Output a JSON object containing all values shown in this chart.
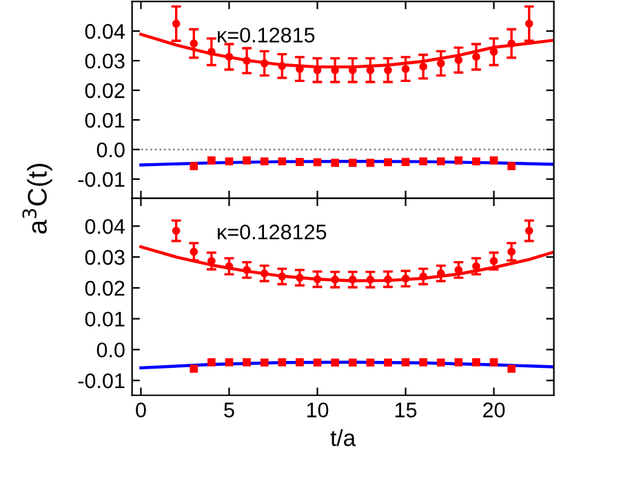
{
  "chart_data": [
    {
      "type": "scatter",
      "ylabel": "a$^{3}$C(t)",
      "annotations": [
        "κ=0.12815"
      ],
      "tick_labels": "y",
      "xlim": [
        -0.5,
        23.4
      ],
      "xticks": [
        0,
        5,
        10,
        15,
        20
      ],
      "ylim": [
        -0.0165,
        0.05
      ],
      "yticks": [
        -0.01,
        {
          "value": 0,
          "label": "0.0"
        },
        0.01,
        0.02,
        0.03,
        0.04
      ],
      "grid": false,
      "legend": false,
      "ref_lines": [
        {
          "axis": "y",
          "value": 0,
          "color": "#808080",
          "line_style": "dotted"
        }
      ],
      "series": [
        {
          "marker": "circle",
          "color": "#ff0000",
          "x": [
            2,
            3,
            4,
            5,
            6,
            7,
            8,
            9,
            10,
            11,
            12,
            13,
            14,
            15,
            16,
            17,
            18,
            19,
            20,
            21,
            22
          ],
          "values": [
            0.0425,
            0.0358,
            0.033,
            0.0313,
            0.03,
            0.0291,
            0.0282,
            0.0272,
            0.0268,
            0.0268,
            0.0268,
            0.0268,
            0.0268,
            0.0272,
            0.028,
            0.0291,
            0.0302,
            0.0313,
            0.033,
            0.0358,
            0.0425
          ],
          "errors": [
            0.0058,
            0.0048,
            0.0045,
            0.0043,
            0.0042,
            0.0041,
            0.004,
            0.004,
            0.004,
            0.004,
            0.004,
            0.004,
            0.004,
            0.004,
            0.004,
            0.0041,
            0.0042,
            0.0043,
            0.0045,
            0.0048,
            0.0058
          ]
        },
        {
          "type": "line",
          "marker": "none",
          "color": "#ff0000",
          "x": [
            0,
            2,
            4,
            6,
            8,
            10,
            12,
            14,
            16,
            18,
            20,
            22,
            23.4
          ],
          "values": [
            0.0389,
            0.0353,
            0.0323,
            0.0301,
            0.0286,
            0.0279,
            0.0279,
            0.0285,
            0.0298,
            0.0318,
            0.0345,
            0.0359,
            0.0369
          ]
        },
        {
          "marker": "square",
          "color": "#ff0000",
          "x": [
            3,
            4,
            5,
            6,
            7,
            8,
            9,
            10,
            11,
            12,
            13,
            14,
            15,
            16,
            17,
            18,
            19,
            20,
            21
          ],
          "values": [
            -0.0056,
            -0.0037,
            -0.004,
            -0.0037,
            -0.004,
            -0.004,
            -0.0042,
            -0.0043,
            -0.0045,
            -0.0045,
            -0.0045,
            -0.0043,
            -0.0042,
            -0.004,
            -0.004,
            -0.0037,
            -0.004,
            -0.0037,
            -0.0056
          ]
        },
        {
          "type": "line",
          "marker": "none",
          "color": "#0000ff",
          "x": [
            0,
            4,
            8,
            12,
            16,
            20,
            23.4
          ],
          "values": [
            -0.0052,
            -0.0045,
            -0.0041,
            -0.004,
            -0.0041,
            -0.0045,
            -0.005
          ]
        }
      ]
    },
    {
      "type": "scatter",
      "xlabel": "t/a",
      "annotations": [
        "κ=0.128125"
      ],
      "xlim": [
        -0.5,
        23.4
      ],
      "xticks": [
        0,
        5,
        10,
        15,
        20
      ],
      "ylim": [
        -0.0148,
        0.049
      ],
      "yticks": [
        -0.01,
        {
          "value": 0,
          "label": "0.0"
        },
        0.01,
        0.02,
        0.03,
        0.04
      ],
      "grid": false,
      "legend": false,
      "series": [
        {
          "marker": "circle",
          "color": "#ff0000",
          "x": [
            2,
            3,
            4,
            5,
            6,
            7,
            8,
            9,
            10,
            11,
            12,
            13,
            14,
            15,
            16,
            17,
            18,
            19,
            20,
            21,
            22
          ],
          "values": [
            0.0385,
            0.0317,
            0.0287,
            0.027,
            0.0258,
            0.0247,
            0.0237,
            0.0233,
            0.0228,
            0.0227,
            0.0227,
            0.0227,
            0.0228,
            0.023,
            0.0237,
            0.0247,
            0.0258,
            0.027,
            0.0287,
            0.0317,
            0.0385
          ],
          "errors": [
            0.0033,
            0.0028,
            0.0027,
            0.0026,
            0.0025,
            0.0025,
            0.0025,
            0.0025,
            0.0025,
            0.0025,
            0.0025,
            0.0025,
            0.0025,
            0.0025,
            0.0025,
            0.0025,
            0.0025,
            0.0026,
            0.0027,
            0.0028,
            0.0033
          ]
        },
        {
          "type": "line",
          "marker": "none",
          "color": "#ff0000",
          "x": [
            0,
            2,
            4,
            6,
            8,
            10,
            12,
            14,
            16,
            18,
            20,
            22,
            23.4
          ],
          "values": [
            0.0333,
            0.03,
            0.0274,
            0.0254,
            0.0238,
            0.0228,
            0.0223,
            0.0224,
            0.0231,
            0.0245,
            0.0266,
            0.0292,
            0.0316
          ]
        },
        {
          "marker": "square",
          "color": "#ff0000",
          "x": [
            3,
            4,
            5,
            6,
            7,
            8,
            9,
            10,
            11,
            12,
            13,
            14,
            15,
            16,
            17,
            18,
            19,
            20,
            21
          ],
          "values": [
            -0.0062,
            -0.0041,
            -0.0041,
            -0.0041,
            -0.0042,
            -0.0041,
            -0.0041,
            -0.0042,
            -0.0042,
            -0.0042,
            -0.0042,
            -0.0042,
            -0.0041,
            -0.0041,
            -0.0042,
            -0.0041,
            -0.0041,
            -0.0041,
            -0.0062
          ]
        },
        {
          "type": "line",
          "marker": "none",
          "color": "#0000ff",
          "x": [
            0,
            4,
            8,
            12,
            16,
            20,
            23.4
          ],
          "values": [
            -0.0059,
            -0.0048,
            -0.0042,
            -0.0041,
            -0.0043,
            -0.0049,
            -0.0056
          ]
        }
      ]
    }
  ]
}
